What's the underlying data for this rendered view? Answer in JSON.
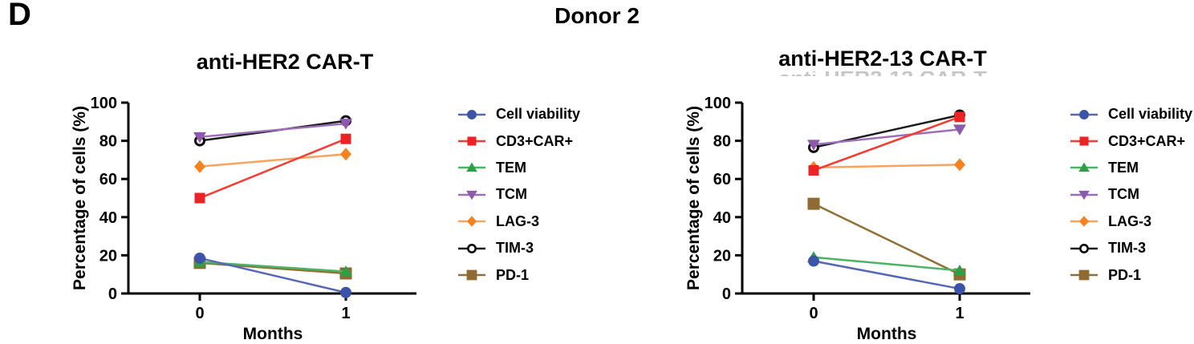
{
  "panel_label": "D",
  "figure_title": "Donor 2",
  "chart_data": [
    {
      "type": "line",
      "title": "anti-HER2 CAR-T",
      "xlabel": "Months",
      "ylabel": "Percentage of cells (%)",
      "x": [
        0,
        1
      ],
      "x_tick_labels": [
        "0",
        "1"
      ],
      "y_ticks": [
        0,
        20,
        40,
        60,
        80,
        100
      ],
      "ylim": [
        0,
        100
      ],
      "grid": false,
      "legend_position": "right",
      "series": [
        {
          "name": "Cell viability",
          "marker": "circle",
          "color": "#3b54a8",
          "line_color": "#5568b4",
          "values": [
            18.5,
            0.5
          ]
        },
        {
          "name": "CD3+CAR+",
          "marker": "square",
          "color": "#ed2224",
          "line_color": "#f23d33",
          "values": [
            50,
            81
          ]
        },
        {
          "name": "TEM",
          "marker": "triangle-up",
          "color": "#2ba147",
          "line_color": "#4ab364",
          "values": [
            16.5,
            11.5
          ]
        },
        {
          "name": "TCM",
          "marker": "triangle-down",
          "color": "#8d59aa",
          "line_color": "#9d6fba",
          "values": [
            82,
            89
          ]
        },
        {
          "name": "LAG-3",
          "marker": "diamond",
          "color": "#f5821f",
          "line_color": "#f9a35f",
          "values": [
            66.5,
            73
          ]
        },
        {
          "name": "TIM-3",
          "marker": "open-circle",
          "color": "#0a0a0a",
          "line_color": "#1a1a1a",
          "values": [
            80,
            90.5
          ]
        },
        {
          "name": "PD-1",
          "marker": "square-large",
          "color": "#8f6b31",
          "line_color": "#926f35",
          "values": [
            16,
            10.5
          ]
        }
      ]
    },
    {
      "type": "line",
      "title": "anti-HER2-13 CAR-T",
      "xlabel": "Months",
      "ylabel": "Percentage of cells (%)",
      "x": [
        0,
        1
      ],
      "x_tick_labels": [
        "0",
        "1"
      ],
      "y_ticks": [
        0,
        20,
        40,
        60,
        80,
        100
      ],
      "ylim": [
        0,
        100
      ],
      "grid": false,
      "legend_position": "right",
      "series": [
        {
          "name": "Cell viability",
          "marker": "circle",
          "color": "#3b54a8",
          "line_color": "#5568b4",
          "values": [
            17,
            2.5
          ]
        },
        {
          "name": "CD3+CAR+",
          "marker": "square",
          "color": "#ed2224",
          "line_color": "#f23d33",
          "values": [
            64.5,
            92.5
          ]
        },
        {
          "name": "TEM",
          "marker": "triangle-up",
          "color": "#2ba147",
          "line_color": "#4ab364",
          "values": [
            19,
            12
          ]
        },
        {
          "name": "TCM",
          "marker": "triangle-down",
          "color": "#8d59aa",
          "line_color": "#9d6fba",
          "values": [
            78,
            86
          ]
        },
        {
          "name": "LAG-3",
          "marker": "diamond",
          "color": "#f5821f",
          "line_color": "#f9a35f",
          "values": [
            66,
            67.5
          ]
        },
        {
          "name": "TIM-3",
          "marker": "open-circle",
          "color": "#0a0a0a",
          "line_color": "#1a1a1a",
          "values": [
            76.5,
            93.5
          ]
        },
        {
          "name": "PD-1",
          "marker": "square-large",
          "color": "#8f6b31",
          "line_color": "#926f35",
          "values": [
            47,
            10
          ]
        }
      ]
    }
  ]
}
